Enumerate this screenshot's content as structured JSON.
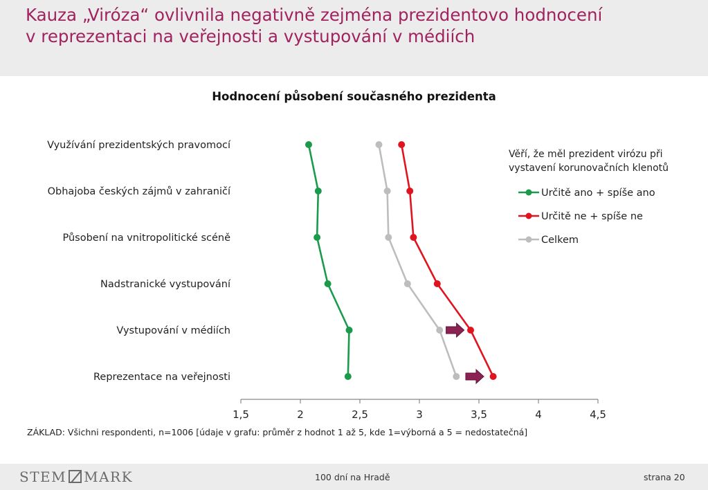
{
  "slide": {
    "title_line1": "Kauza „Viróza“ ovlivnila negativně zejména prezidentovo hodnocení",
    "title_line2": "v reprezentaci na veřejnosti a vystupování v médiích"
  },
  "chart_data": {
    "type": "line",
    "title": "Hodnocení působení současného prezidenta",
    "categories": [
      "Využívání prezidentských pravomocí",
      "Obhajoba českých zájmů v zahraničí",
      "Působení na vnitropolitické scéně",
      "Nadstranické vystupování",
      "Vystupování v médiích",
      "Reprezentace na veřejnosti"
    ],
    "xlim": [
      1.5,
      4.5
    ],
    "xticks": [
      "1,5",
      "2",
      "2,5",
      "3",
      "3,5",
      "4",
      "4,5"
    ],
    "xtick_values": [
      1.5,
      2,
      2.5,
      3,
      3.5,
      4,
      4.5
    ],
    "grid": false,
    "legend_title": "Věří, že měl prezident virózu při vystavení korunovačních klenotů",
    "legend_title_line1": "Věří, že měl prezident virózu při",
    "legend_title_line2": "vystavení korunovačních klenotů",
    "legend_position": "right",
    "series": [
      {
        "name": "Určitě ano + spíše ano",
        "color": "#1a9a4a",
        "values": [
          2.07,
          2.15,
          2.14,
          2.23,
          2.41,
          2.4
        ]
      },
      {
        "name": "Určitě ne + spíše ne",
        "color": "#e0141e",
        "values": [
          2.85,
          2.92,
          2.95,
          3.15,
          3.43,
          3.62
        ]
      },
      {
        "name": "Celkem",
        "color": "#bdbdbd",
        "values": [
          2.66,
          2.73,
          2.74,
          2.9,
          3.17,
          3.31
        ]
      }
    ],
    "arrow_color": "#8b2252",
    "highlight_arrows_on": [
      "Vystupování v médiích",
      "Reprezentace na veřejnosti"
    ]
  },
  "note": "ZÁKLAD: Všichni respondenti, n=1006 [údaje v grafu: průměr z hodnot 1 až 5, kde 1=výborná a 5 = nedostatečná]",
  "footer": {
    "logo_left": "STEM",
    "logo_right": "MARK",
    "center": "100 dní na Hradě",
    "page": "strana 20"
  }
}
